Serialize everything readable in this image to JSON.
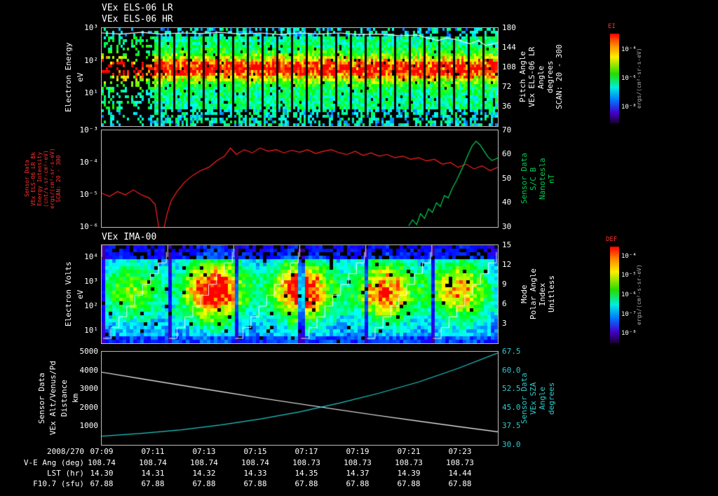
{
  "titles": {
    "panel1_line1": "VEx ELS-06 LR",
    "panel1_line2": "VEx ELS-06 HR",
    "panel3": "VEx IMA-00"
  },
  "panel1": {
    "left_label": [
      "Electron Energy",
      "eV"
    ],
    "left_ticks": [
      "10³",
      "10²",
      "10¹"
    ],
    "right_ticks": [
      "180",
      "144",
      "108",
      "72",
      "36"
    ],
    "right_label": [
      "Pitch Angle",
      "VEx ELS-06 LR",
      "Angle",
      "degrees",
      "SCAN: 20 - 300"
    ]
  },
  "panel2": {
    "left_label": [
      "Sensor Data",
      "VEx ELS-06 LR Bk",
      "Energy Intensity",
      "(cnt/s-sr-cm²-eV)",
      "ergs/(cm²-sr-s-eV)",
      "SCAN: 20 - 300"
    ],
    "left_ticks": [
      "10⁻³",
      "10⁻⁴",
      "10⁻⁵",
      "10⁻⁶"
    ],
    "right_ticks": [
      "70",
      "60",
      "50",
      "40",
      "30"
    ],
    "right_label": [
      "Sensor Data",
      "S/C B",
      "Nanotesla",
      "nT"
    ]
  },
  "panel3": {
    "left_label": [
      "Electron Volts",
      "eV"
    ],
    "left_ticks": [
      "10⁴",
      "10³",
      "10²",
      "10¹"
    ],
    "right_ticks": [
      "15",
      "12",
      "9",
      "6",
      "3"
    ],
    "right_label": [
      "Mode",
      "Polar Angle",
      "Index",
      "Unitless"
    ]
  },
  "panel4": {
    "left_label": [
      "Sensor Data",
      "VEx Alt/Venus/Pd",
      "Distance",
      "km"
    ],
    "left_ticks": [
      "5000",
      "4000",
      "3000",
      "2000",
      "1000"
    ],
    "right_ticks": [
      "67.5",
      "60.0",
      "52.5",
      "45.0",
      "37.5",
      "30.0"
    ],
    "right_label": [
      "Sensor Data",
      "VEx SZA",
      "Angle",
      "degrees"
    ]
  },
  "colorbar1": {
    "title": "EI",
    "ticks": [
      "10⁻⁴",
      "10⁻⁶",
      "10⁻⁸"
    ],
    "units": "ergs/(cm²-sr-s-eV)"
  },
  "colorbar2": {
    "title": "DEF",
    "ticks": [
      "10⁻⁴",
      "10⁻⁵",
      "10⁻⁶",
      "10⁻⁷",
      "10⁻⁸"
    ],
    "units": "ergs/(cm²-s-sr-eV)"
  },
  "xaxis": {
    "date": "2008/270",
    "times": [
      "07:09",
      "07:11",
      "07:13",
      "07:15",
      "07:17",
      "07:19",
      "07:21",
      "07:23"
    ]
  },
  "table": {
    "rows": [
      {
        "label": "V-E Ang (deg)",
        "values": [
          "108.74",
          "108.74",
          "108.74",
          "108.74",
          "108.73",
          "108.73",
          "108.73",
          "108.73"
        ]
      },
      {
        "label": "LST (hr)",
        "values": [
          "14.30",
          "14.31",
          "14.32",
          "14.33",
          "14.35",
          "14.37",
          "14.39",
          "14.44"
        ]
      },
      {
        "label": "F10.7 (sfu)",
        "values": [
          "67.88",
          "67.88",
          "67.88",
          "67.88",
          "67.88",
          "67.88",
          "67.88",
          "67.88"
        ]
      }
    ]
  },
  "chart_data": [
    {
      "type": "heatmap",
      "title": "VEx ELS-06 LR / VEx ELS-06 HR electron energy-time spectrogram",
      "ylabel": "Electron Energy (eV)",
      "y_scale": "log",
      "y_ticks_ev": [
        1000,
        100,
        10
      ],
      "date": "2008/270",
      "x_start": "07:09",
      "x_end": "07:24",
      "z_label": "EI",
      "z_units": "ergs/(cm²-sr-s-eV)",
      "z_ticks": [
        "1e-4",
        "1e-6",
        "1e-8"
      ],
      "right_axis": {
        "label": "Pitch Angle VEx ELS-06 LR Angle degrees SCAN: 20 - 300",
        "ticks": [
          180,
          144,
          108,
          72,
          36
        ],
        "range": [
          0,
          180
        ]
      },
      "description": "Intense 60-300 eV band (yellow-red) from ~07:11 to end of interval; sparse/black counts before 07:11; periodic vertical black scan gaps; white pitch-angle trace near 170 deg descending to ~150 deg after 07:21",
      "procedural": {
        "seed": 7,
        "cols": 188,
        "rows": 35,
        "gap_every": 7,
        "band_center": 0.4,
        "band_sigma": 0.09,
        "sparse_left": 0.13
      },
      "overlay_line": {
        "name": "pitch-angle-trace",
        "units": "degrees",
        "range": [
          0,
          180
        ],
        "points": [
          [
            0,
            171
          ],
          [
            0.05,
            169
          ],
          [
            0.1,
            172
          ],
          [
            0.15,
            169
          ],
          [
            0.2,
            171
          ],
          [
            0.25,
            170
          ],
          [
            0.3,
            172
          ],
          [
            0.35,
            169
          ],
          [
            0.4,
            171
          ],
          [
            0.45,
            168
          ],
          [
            0.5,
            171
          ],
          [
            0.55,
            169
          ],
          [
            0.6,
            171
          ],
          [
            0.65,
            168
          ],
          [
            0.7,
            169
          ],
          [
            0.75,
            166
          ],
          [
            0.8,
            167
          ],
          [
            0.82,
            162
          ],
          [
            0.85,
            157
          ],
          [
            0.87,
            162
          ],
          [
            0.9,
            158
          ],
          [
            0.93,
            151
          ],
          [
            0.95,
            157
          ],
          [
            0.97,
            148
          ],
          [
            1,
            153
          ]
        ]
      }
    },
    {
      "type": "line",
      "title": "ELS energy intensity and spacecraft magnetic field",
      "series": [
        {
          "name": "Sensor Data VEx ELS-06 LR Bk Energy Intensity",
          "units": "ergs/(cm²-sr-s-eV)",
          "color": "#ff2020",
          "axis": "left",
          "y_scale": "log",
          "y_range_log10": [
            -6,
            -3
          ],
          "points_log10": [
            [
              0,
              -4.95
            ],
            [
              0.02,
              -5.05
            ],
            [
              0.04,
              -4.9
            ],
            [
              0.06,
              -5.0
            ],
            [
              0.08,
              -4.85
            ],
            [
              0.1,
              -5.0
            ],
            [
              0.12,
              -5.1
            ],
            [
              0.135,
              -5.3
            ],
            [
              0.15,
              -6.45
            ],
            [
              0.165,
              -5.6
            ],
            [
              0.175,
              -5.2
            ],
            [
              0.19,
              -4.9
            ],
            [
              0.21,
              -4.6
            ],
            [
              0.23,
              -4.4
            ],
            [
              0.25,
              -4.25
            ],
            [
              0.27,
              -4.15
            ],
            [
              0.29,
              -3.95
            ],
            [
              0.31,
              -3.8
            ],
            [
              0.325,
              -3.55
            ],
            [
              0.34,
              -3.75
            ],
            [
              0.36,
              -3.6
            ],
            [
              0.38,
              -3.7
            ],
            [
              0.4,
              -3.55
            ],
            [
              0.42,
              -3.65
            ],
            [
              0.44,
              -3.6
            ],
            [
              0.46,
              -3.7
            ],
            [
              0.48,
              -3.62
            ],
            [
              0.5,
              -3.68
            ],
            [
              0.52,
              -3.6
            ],
            [
              0.54,
              -3.72
            ],
            [
              0.56,
              -3.65
            ],
            [
              0.58,
              -3.6
            ],
            [
              0.6,
              -3.7
            ],
            [
              0.62,
              -3.75
            ],
            [
              0.64,
              -3.65
            ],
            [
              0.66,
              -3.78
            ],
            [
              0.68,
              -3.7
            ],
            [
              0.7,
              -3.8
            ],
            [
              0.72,
              -3.75
            ],
            [
              0.74,
              -3.85
            ],
            [
              0.76,
              -3.8
            ],
            [
              0.78,
              -3.9
            ],
            [
              0.8,
              -3.85
            ],
            [
              0.82,
              -3.95
            ],
            [
              0.84,
              -3.9
            ],
            [
              0.86,
              -4.05
            ],
            [
              0.88,
              -4.0
            ],
            [
              0.9,
              -4.15
            ],
            [
              0.92,
              -4.05
            ],
            [
              0.94,
              -4.2
            ],
            [
              0.96,
              -4.1
            ],
            [
              0.98,
              -4.25
            ],
            [
              1,
              -4.15
            ]
          ]
        },
        {
          "name": "Sensor Data S/C B Nanotesla",
          "units": "nT",
          "color": "#00d050",
          "axis": "right",
          "y_range": [
            30,
            70
          ],
          "points": [
            [
              0.775,
              30.5
            ],
            [
              0.785,
              33
            ],
            [
              0.795,
              31
            ],
            [
              0.805,
              35.5
            ],
            [
              0.815,
              33.5
            ],
            [
              0.825,
              37.5
            ],
            [
              0.835,
              36
            ],
            [
              0.845,
              40
            ],
            [
              0.855,
              38.5
            ],
            [
              0.865,
              43
            ],
            [
              0.875,
              42
            ],
            [
              0.885,
              46
            ],
            [
              0.895,
              49
            ],
            [
              0.905,
              52.5
            ],
            [
              0.915,
              56
            ],
            [
              0.925,
              60
            ],
            [
              0.935,
              63.5
            ],
            [
              0.945,
              65.5
            ],
            [
              0.955,
              64
            ],
            [
              0.965,
              61.5
            ],
            [
              0.975,
              59
            ],
            [
              0.985,
              57.5
            ],
            [
              1,
              58.5
            ]
          ]
        }
      ]
    },
    {
      "type": "heatmap",
      "title": "VEx IMA-00 ion energy-time spectrogram",
      "ylabel": "Electron Volts (eV)",
      "y_scale": "log",
      "y_ticks_ev": [
        10000,
        1000,
        100,
        10
      ],
      "z_label": "DEF",
      "z_ticks": [
        "1e-4",
        "1e-5",
        "1e-6",
        "1e-7",
        "1e-8"
      ],
      "right_axis": {
        "label": "Mode Polar Angle Index Unitless",
        "ticks": [
          15,
          12,
          9,
          6,
          3
        ],
        "range": [
          0,
          15
        ]
      },
      "description": "Blue background with periodic bright 100-1000 eV ion populations (green-yellow-red cores) near 07:13.5, 07:16.5, 07:19.5 and 07:22.5; white elevation-scan staircase lines repeating across the interval",
      "procedural": {
        "seed": 11,
        "cols": 113,
        "rows": 28,
        "blob_xs": [
          0.07,
          0.28,
          0.5,
          0.71,
          0.9
        ],
        "blob_amps": [
          0.5,
          1.0,
          0.95,
          0.8,
          0.7
        ],
        "blob_ycenter": 0.45,
        "blob_sigx": 0.055,
        "blob_sigy": 0.22,
        "segments": 6
      }
    },
    {
      "type": "line",
      "title": "Spacecraft altitude and solar zenith angle",
      "series": [
        {
          "name": "Sensor Data VEx Alt/Venus/Pd Distance",
          "units": "km",
          "color": "#ffffff",
          "axis": "left",
          "y_range": [
            0,
            5000
          ],
          "points": [
            [
              0,
              3900
            ],
            [
              0.1,
              3550
            ],
            [
              0.2,
              3200
            ],
            [
              0.3,
              2860
            ],
            [
              0.4,
              2520
            ],
            [
              0.5,
              2200
            ],
            [
              0.6,
              1880
            ],
            [
              0.7,
              1570
            ],
            [
              0.8,
              1270
            ],
            [
              0.9,
              980
            ],
            [
              1,
              700
            ]
          ]
        },
        {
          "name": "Sensor Data VEx SZA Angle",
          "units": "degrees",
          "color": "#20c8c8",
          "axis": "right",
          "y_range": [
            30,
            67.5
          ],
          "points": [
            [
              0,
              33.5
            ],
            [
              0.1,
              34.6
            ],
            [
              0.2,
              36
            ],
            [
              0.3,
              38
            ],
            [
              0.4,
              40.4
            ],
            [
              0.5,
              43.3
            ],
            [
              0.6,
              46.8
            ],
            [
              0.7,
              50.8
            ],
            [
              0.8,
              55.3
            ],
            [
              0.9,
              60.8
            ],
            [
              1,
              67
            ]
          ]
        }
      ]
    }
  ]
}
